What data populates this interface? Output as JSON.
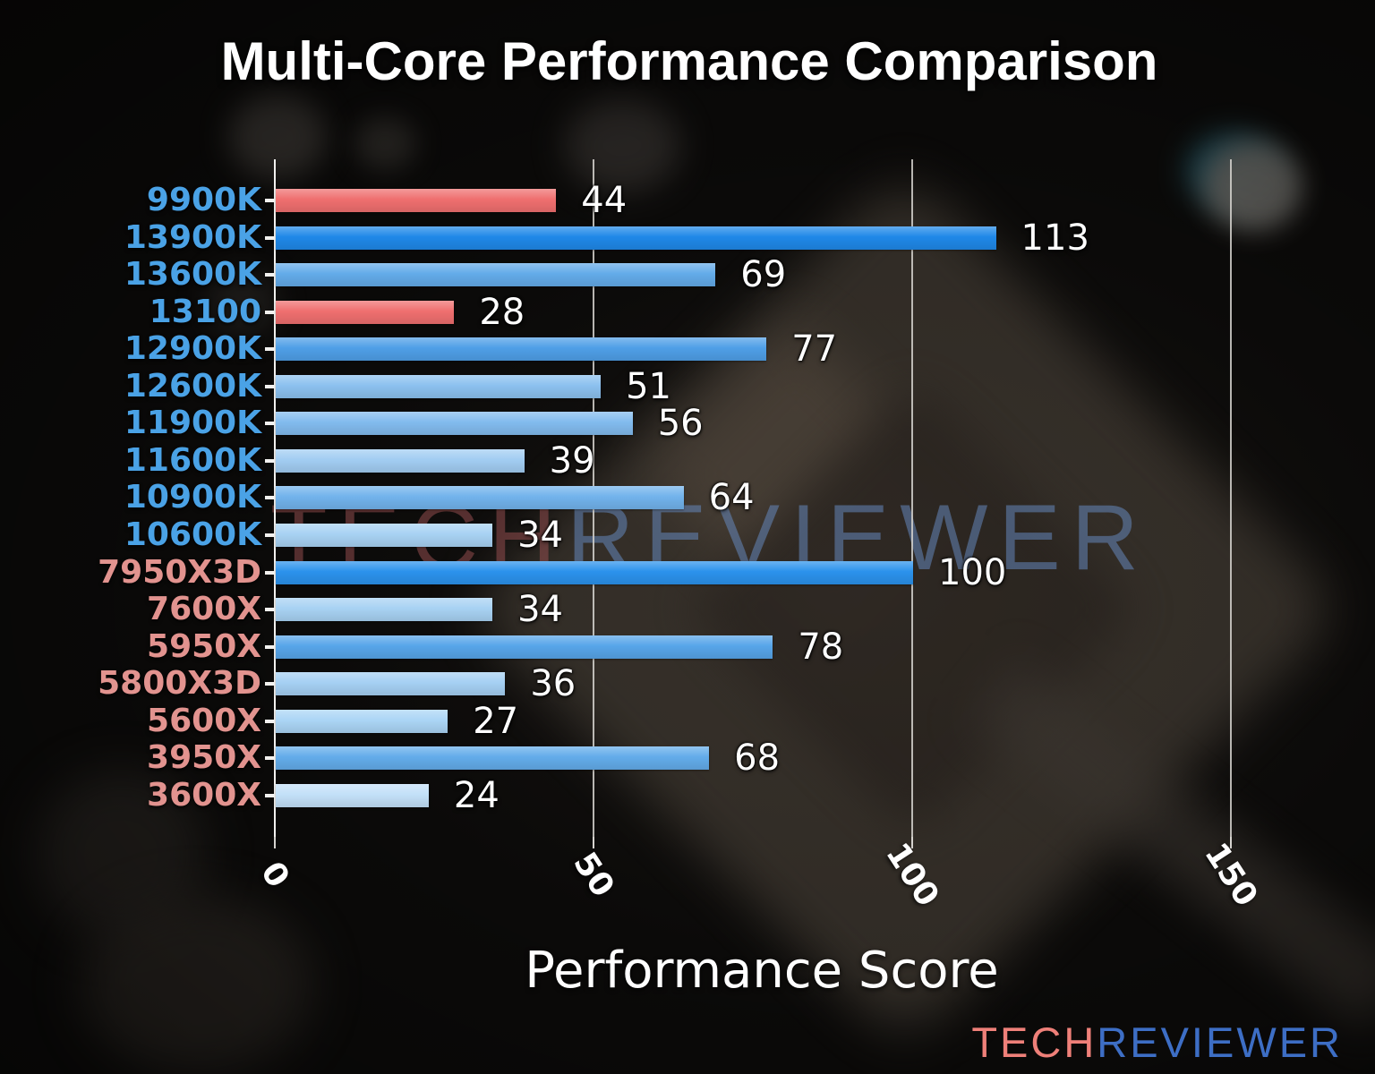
{
  "title": "Multi-Core Performance Comparison",
  "watermark": {
    "tech": "TECH",
    "reviewer": "REVIEWER",
    "tech_color": "rgba(158,82,84,0.50)",
    "reviewer_color": "rgba(104,140,196,0.52)"
  },
  "logo": {
    "tech": "TECH",
    "reviewer": "REVIEWER",
    "tech_color": "#ef8079",
    "reviewer_color": "#3d6ec5"
  },
  "colors": {
    "intel_label": "#4aa2e6",
    "amd_label": "#e2938f",
    "highlight_bar_red": "#ef6f6f",
    "value_text": "#ffffff",
    "gridline": "#d6d3cf"
  },
  "chart_data": {
    "type": "bar",
    "orientation": "horizontal",
    "title": "Multi-Core Performance Comparison",
    "xlabel": "Performance Score",
    "xlim": [
      0,
      166
    ],
    "xticks": [
      0,
      50,
      100,
      150
    ],
    "grid": true,
    "legend": false,
    "categories": [
      "9900K",
      "13900K",
      "13600K",
      "13100",
      "12900K",
      "12600K",
      "11900K",
      "11600K",
      "10900K",
      "10600K",
      "7950X3D",
      "7600X",
      "5950X",
      "5800X3D",
      "5600X",
      "3950X",
      "3600X"
    ],
    "values": [
      44,
      113,
      69,
      28,
      77,
      51,
      56,
      39,
      64,
      34,
      100,
      34,
      78,
      36,
      27,
      68,
      24
    ],
    "bars": [
      {
        "label": "9900K",
        "value": 44,
        "bar_color": "#ef6f6f",
        "label_color": "#4aa2e6"
      },
      {
        "label": "13900K",
        "value": 113,
        "bar_color": "#1f88e8",
        "label_color": "#4aa2e6"
      },
      {
        "label": "13600K",
        "value": 69,
        "bar_color": "#63abe9",
        "label_color": "#4aa2e6"
      },
      {
        "label": "13100",
        "value": 28,
        "bar_color": "#ef6f6f",
        "label_color": "#4aa2e6"
      },
      {
        "label": "12900K",
        "value": 77,
        "bar_color": "#4f9fe7",
        "label_color": "#4aa2e6"
      },
      {
        "label": "12600K",
        "value": 51,
        "bar_color": "#8cc1ef",
        "label_color": "#4aa2e6"
      },
      {
        "label": "11900K",
        "value": 56,
        "bar_color": "#82bbee",
        "label_color": "#4aa2e6"
      },
      {
        "label": "11600K",
        "value": 39,
        "bar_color": "#a2cdf2",
        "label_color": "#4aa2e6"
      },
      {
        "label": "10900K",
        "value": 64,
        "bar_color": "#72b3ec",
        "label_color": "#4aa2e6"
      },
      {
        "label": "10600K",
        "value": 34,
        "bar_color": "#a8d2f3",
        "label_color": "#4aa2e6"
      },
      {
        "label": "7950X3D",
        "value": 100,
        "bar_color": "#2b92ec",
        "label_color": "#e2938f"
      },
      {
        "label": "7600X",
        "value": 34,
        "bar_color": "#a8d2f3",
        "label_color": "#e2938f"
      },
      {
        "label": "5950X",
        "value": 78,
        "bar_color": "#57a5e9",
        "label_color": "#e2938f"
      },
      {
        "label": "5800X3D",
        "value": 36,
        "bar_color": "#a5d0f3",
        "label_color": "#e2938f"
      },
      {
        "label": "5600X",
        "value": 27,
        "bar_color": "#abd5f5",
        "label_color": "#e2938f"
      },
      {
        "label": "3950X",
        "value": 68,
        "bar_color": "#63acea",
        "label_color": "#e2938f"
      },
      {
        "label": "3600X",
        "value": 24,
        "bar_color": "#c3e0f8",
        "label_color": "#e2938f"
      }
    ]
  }
}
